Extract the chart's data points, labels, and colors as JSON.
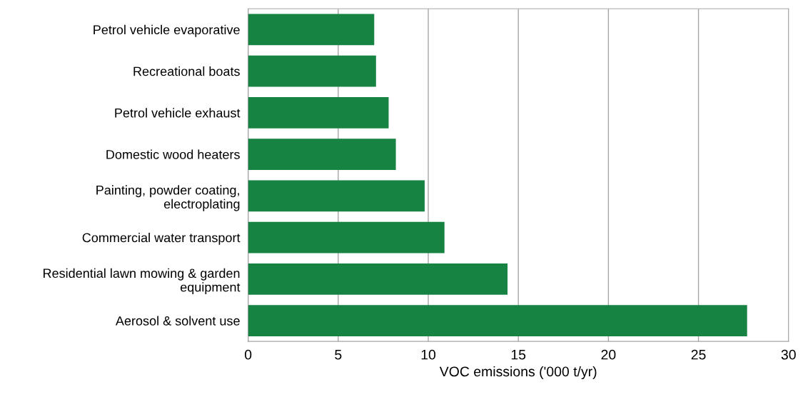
{
  "chart_data": {
    "type": "bar",
    "orientation": "horizontal",
    "xlabel": "VOC emissions ('000 t/yr)",
    "categories": [
      "Petrol vehicle evaporative",
      "Recreational boats",
      "Petrol vehicle exhaust",
      "Domestic wood heaters",
      "Painting, powder coating,\nelectroplating",
      "Commercial water transport",
      "Residential lawn mowing & garden\nequipment",
      "Aerosol & solvent use"
    ],
    "values": [
      7.0,
      7.1,
      7.8,
      8.2,
      9.8,
      10.9,
      14.4,
      27.7
    ],
    "color": "#178342",
    "xlim": [
      0,
      30
    ],
    "xticks": [
      0,
      5,
      10,
      15,
      20,
      25,
      30
    ],
    "grid": "x",
    "legend": false
  }
}
